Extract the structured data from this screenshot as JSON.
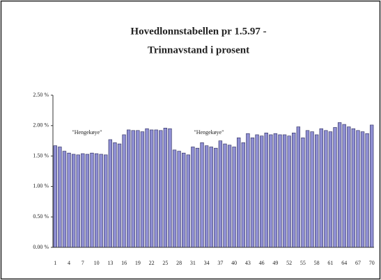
{
  "chart_data": {
    "type": "bar",
    "title": "Hovedlonnstabellen pr 1.5.97 -",
    "subtitle": "Trinnavstand i prosent",
    "annotations": [
      "\"Hengekøye\"",
      "\"Hengekøye\""
    ],
    "categories": [
      "1",
      null,
      null,
      "4",
      null,
      null,
      "7",
      null,
      null,
      "10",
      null,
      null,
      "13",
      null,
      null,
      "16",
      null,
      null,
      "19",
      null,
      null,
      "22",
      null,
      null,
      "25",
      null,
      null,
      "28",
      null,
      null,
      "31",
      null,
      null,
      "34",
      null,
      null,
      "37",
      null,
      null,
      "40",
      null,
      null,
      "43",
      null,
      null,
      "46",
      null,
      null,
      "49",
      null,
      null,
      "52",
      null,
      null,
      "55",
      null,
      null,
      "58",
      null,
      null,
      "61",
      null,
      null,
      "64",
      null,
      null,
      "67",
      null,
      null,
      "70"
    ],
    "values": [
      1.67,
      1.65,
      1.58,
      1.55,
      1.53,
      1.52,
      1.54,
      1.53,
      1.55,
      1.54,
      1.53,
      1.52,
      1.77,
      1.72,
      1.7,
      1.85,
      1.93,
      1.92,
      1.92,
      1.9,
      1.95,
      1.93,
      1.93,
      1.92,
      1.96,
      1.95,
      1.6,
      1.58,
      1.55,
      1.52,
      1.65,
      1.63,
      1.72,
      1.67,
      1.65,
      1.63,
      1.75,
      1.7,
      1.68,
      1.65,
      1.8,
      1.72,
      1.87,
      1.8,
      1.85,
      1.83,
      1.88,
      1.85,
      1.87,
      1.85,
      1.85,
      1.83,
      1.88,
      1.98,
      1.8,
      1.92,
      1.9,
      1.85,
      1.95,
      1.92,
      1.9,
      1.97,
      2.05,
      2.02,
      1.98,
      1.95,
      1.92,
      1.9,
      1.87,
      2.01
    ],
    "color": "#8e8ed2",
    "ylim": [
      0,
      2.5
    ],
    "yticks": [
      {
        "value": 0,
        "label": "0.00 %"
      },
      {
        "value": 0.5,
        "label": "0.50 %"
      },
      {
        "value": 1,
        "label": "1.00 %"
      },
      {
        "value": 1.5,
        "label": "1.50 %"
      },
      {
        "value": 2,
        "label": "2.00 %"
      },
      {
        "value": 2.5,
        "label": "2.50 %"
      }
    ],
    "grid": false
  }
}
